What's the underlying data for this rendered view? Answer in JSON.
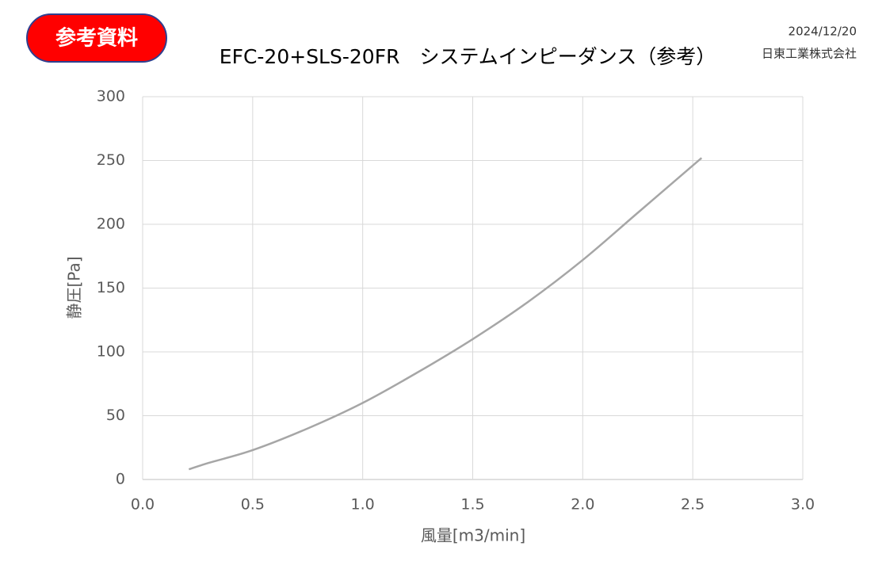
{
  "header": {
    "badge": "参考資料",
    "date": "2024/12/20",
    "company": "日東工業株式会社"
  },
  "chart_data": {
    "type": "line",
    "title": "EFC-20+SLS-20FR　システムインピーダンス（参考）",
    "x_label": "風量[m3/min]",
    "y_label": "静圧[Pa]",
    "x": [
      0.21,
      0.3,
      0.5,
      0.75,
      1.0,
      1.25,
      1.5,
      1.75,
      2.0,
      2.25,
      2.54
    ],
    "series": [
      {
        "name": "システムインピーダンス",
        "color": "#a6a6a6",
        "values": [
          8,
          13,
          23,
          40,
          60,
          84,
          110,
          139,
          172,
          209,
          252
        ]
      }
    ],
    "xlim": [
      0,
      3
    ],
    "ylim": [
      0,
      300
    ],
    "xticks": [
      {
        "value": 0,
        "label": "0.0"
      },
      0.5,
      {
        "value": 1,
        "label": "1.0"
      },
      1.5,
      {
        "value": 2,
        "label": "2.0"
      },
      2.5,
      {
        "value": 3,
        "label": "3.0"
      }
    ],
    "yticks": [
      0,
      50,
      100,
      150,
      200,
      250,
      300
    ],
    "grid": true
  }
}
